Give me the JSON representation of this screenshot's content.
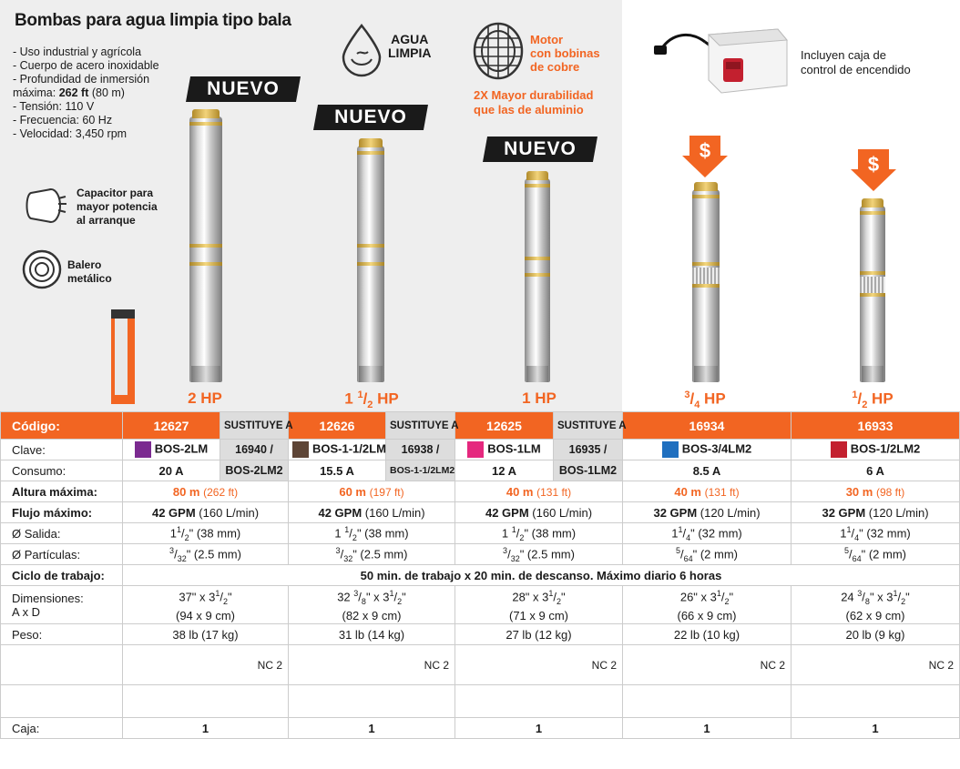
{
  "header": {
    "title": "Bombas para agua limpia tipo bala",
    "features": [
      {
        "text": "- Uso industrial y agrícola"
      },
      {
        "text": "- Cuerpo de acero inoxidable"
      },
      {
        "text": "- Profundidad de inmersión"
      },
      {
        "pre": "  máxima: ",
        "bold": "262 ft",
        "post": " (80 m)"
      },
      {
        "text": "- Tensión: 110 V"
      },
      {
        "text": "- Frecuencia: 60 Hz"
      },
      {
        "text": "- Velocidad: 3,450 rpm"
      }
    ],
    "agua_line1": "AGUA",
    "agua_line2": "LIMPIA",
    "motor_lines": [
      "Motor",
      "con bobinas",
      "de cobre"
    ],
    "durab_lines": [
      "2X Mayor durabilidad",
      "que las de aluminio"
    ],
    "caja_lines": [
      "Incluyen caja de",
      "control de encendido"
    ],
    "capacitor_lines": [
      "Capacitor para",
      "mayor potencia",
      "al arranque"
    ],
    "balero_lines": [
      "Balero",
      "metálico"
    ],
    "nuevo_label": "NUEVO",
    "colors": {
      "accent": "#f26522",
      "grey_bg": "#eeeeee",
      "sust_bg": "#dddddd"
    }
  },
  "products": [
    {
      "hp_main": "2 HP",
      "codigo": "12627",
      "clave": "BOS-2LM",
      "swatch": "#7b2a90",
      "consumo": "20 A",
      "altura_m": "80 m",
      "altura_ft": "(262 ft)",
      "flujo_gpm": "42 GPM",
      "flujo_l": "(160 L/min)",
      "salida_whole": "1",
      "salida_num": "1",
      "salida_den": "2",
      "salida_mm": "\" (38 mm)",
      "part_num": "3",
      "part_den": "32",
      "part_mm": "\" (2.5 mm)",
      "dim1_whole": "37\" x 3",
      "dim1_num": "1",
      "dim1_den": "2",
      "dim1_tail": "\"",
      "dim2": "(94 x 9 cm)",
      "peso": "38 lb (17 kg)",
      "nc": "NC 2",
      "caja": "1",
      "sust_label": "SUSTITUYE A",
      "sust_code": "16940 /",
      "sust_clave": "BOS-2LM2"
    },
    {
      "hp_main": "1",
      "hp_num": "1",
      "hp_den": "2",
      "hp_tail": " HP",
      "codigo": "12626",
      "clave": "BOS-1-1/2LM",
      "swatch": "#5e4536",
      "consumo": "15.5 A",
      "altura_m": "60 m",
      "altura_ft": "(197 ft)",
      "flujo_gpm": "42 GPM",
      "flujo_l": "(160 L/min)",
      "salida_whole": "1",
      "salida_num": "1",
      "salida_den": "2",
      "salida_mm": "\" (38 mm)",
      "part_num": "3",
      "part_den": "32",
      "part_mm": "\" (2.5 mm)",
      "dim1_whole": "32 ",
      "dim1_pre_num": "3",
      "dim1_pre_den": "8",
      "dim1_mid": "\" x 3",
      "dim1_num": "1",
      "dim1_den": "2",
      "dim1_tail": "\"",
      "dim2": "(82 x 9 cm)",
      "peso": "31 lb (14 kg)",
      "nc": "NC 2",
      "caja": "1",
      "sust_label": "SUSTITUYE A",
      "sust_code": "16938 /",
      "sust_clave": "BOS-1-1/2LM2"
    },
    {
      "hp_main": "1 HP",
      "codigo": "12625",
      "clave": "BOS-1LM",
      "swatch": "#e5287e",
      "consumo": "12 A",
      "altura_m": "40 m",
      "altura_ft": "(131 ft)",
      "flujo_gpm": "42 GPM",
      "flujo_l": "(160 L/min)",
      "salida_whole": "1",
      "salida_num": "1",
      "salida_den": "2",
      "salida_mm": "\" (38 mm)",
      "part_num": "3",
      "part_den": "32",
      "part_mm": "\" (2.5 mm)",
      "dim1_whole": "28\" x 3",
      "dim1_num": "1",
      "dim1_den": "2",
      "dim1_tail": "\"",
      "dim2": "(71 x 9 cm)",
      "peso": "27 lb (12 kg)",
      "nc": "NC 2",
      "caja": "1",
      "sust_label": "SUSTITUYE A",
      "sust_code": "16935 /",
      "sust_clave": "BOS-1LM2"
    },
    {
      "hp_num": "3",
      "hp_den": "4",
      "hp_tail": " HP",
      "codigo": "16934",
      "clave": "BOS-3/4LM2",
      "swatch": "#1f6fbf",
      "consumo": "8.5 A",
      "altura_m": "40 m",
      "altura_ft": "(131 ft)",
      "flujo_gpm": "32 GPM",
      "flujo_l": "(120 L/min)",
      "salida_whole": "1",
      "salida_num": "1",
      "salida_den": "4",
      "salida_mm": "\" (32 mm)",
      "part_num": "5",
      "part_den": "64",
      "part_mm": "\" (2 mm)",
      "dim1_whole": "26\" x 3",
      "dim1_num": "1",
      "dim1_den": "2",
      "dim1_tail": "\"",
      "dim2": "(66  x 9 cm)",
      "peso": "22 lb (10 kg)",
      "nc": "NC 2",
      "caja": "1"
    },
    {
      "hp_num": "1",
      "hp_den": "2",
      "hp_tail": " HP",
      "codigo": "16933",
      "clave": "BOS-1/2LM2",
      "swatch": "#c3202f",
      "consumo": "6 A",
      "altura_m": "30 m",
      "altura_ft": "(98 ft)",
      "flujo_gpm": "32 GPM",
      "flujo_l": "(120 L/min)",
      "salida_whole": "1",
      "salida_num": "1",
      "salida_den": "4",
      "salida_mm": "\" (32 mm)",
      "part_num": "5",
      "part_den": "64",
      "part_mm": "\" (2 mm)",
      "dim1_whole": "24 ",
      "dim1_pre_num": "3",
      "dim1_pre_den": "8",
      "dim1_mid": "\" x 3",
      "dim1_num": "1",
      "dim1_den": "2",
      "dim1_tail": "\"",
      "dim2": "(62 x 9 cm)",
      "peso": "20 lb (9 kg)",
      "nc": "NC 2",
      "caja": "1"
    }
  ],
  "labels": {
    "codigo": "Código:",
    "clave": "Clave:",
    "consumo": "Consumo:",
    "altura": "Altura máxima:",
    "flujo": "Flujo máximo:",
    "salida": "Ø Salida:",
    "particulas": "Ø Partículas:",
    "ciclo": "Ciclo de trabajo:",
    "ciclo_value": "50 min. de trabajo x 20 min. de descanso. Máximo diario 6 horas",
    "dim1": "Dimensiones:",
    "dim2": "A x D",
    "peso": "Peso:",
    "caja": "Caja:"
  }
}
